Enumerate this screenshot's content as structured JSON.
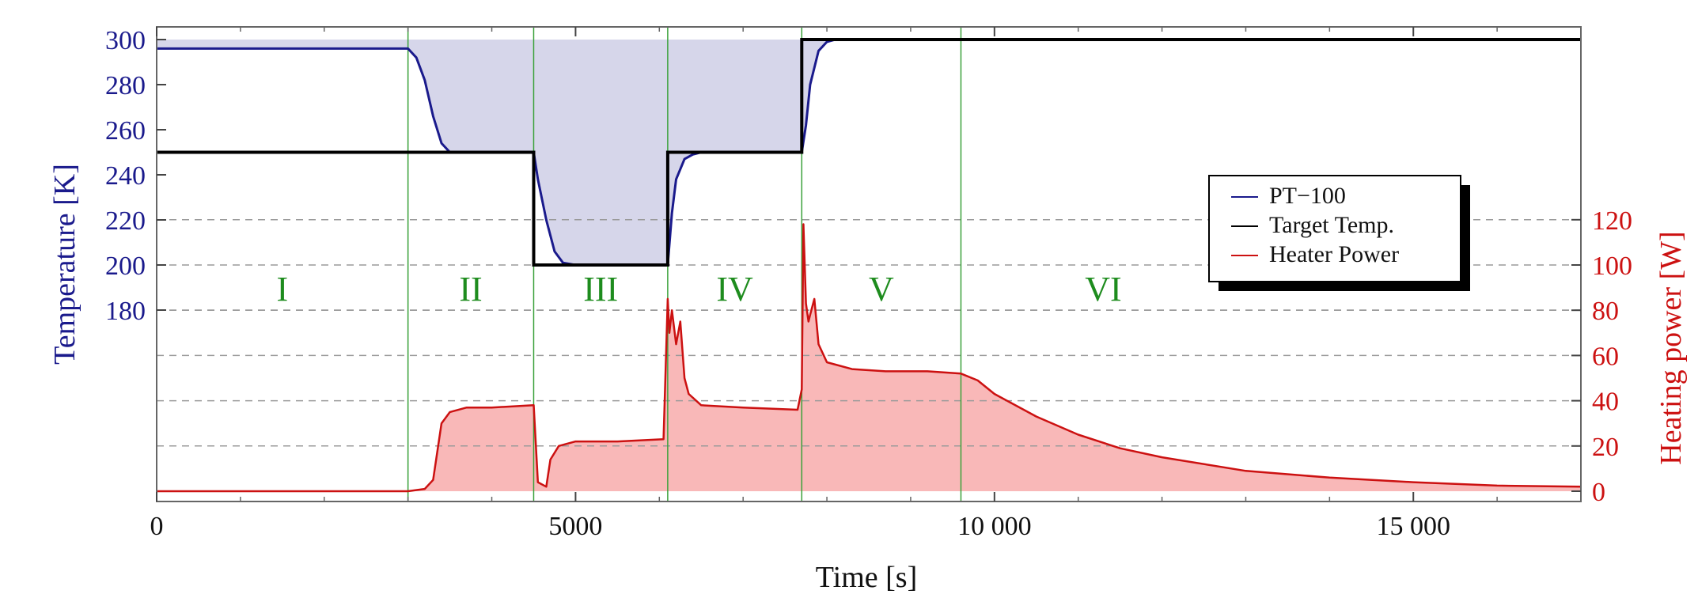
{
  "chart_data": {
    "type": "line",
    "xlabel": "Time [s]",
    "ylabel_left": "Temperature [K]",
    "ylabel_right": "Heating  power [W]",
    "xlim": [
      0,
      17000
    ],
    "ylim_left": [
      180,
      300
    ],
    "ylim_right": [
      0,
      120
    ],
    "x_ticks": [
      {
        "value": 0,
        "label": "0"
      },
      {
        "value": 5000,
        "label": "5000"
      },
      {
        "value": 10000,
        "label": "10 000"
      },
      {
        "value": 15000,
        "label": "15 000"
      }
    ],
    "y_left_ticks": [
      {
        "value": 300,
        "label": "300"
      },
      {
        "value": 280,
        "label": "280"
      },
      {
        "value": 260,
        "label": "260"
      },
      {
        "value": 240,
        "label": "240"
      },
      {
        "value": 220,
        "label": "220"
      },
      {
        "value": 200,
        "label": "200"
      },
      {
        "value": 180,
        "label": "180"
      }
    ],
    "y_right_ticks": [
      {
        "value": 0,
        "label": "0"
      },
      {
        "value": 20,
        "label": "20"
      },
      {
        "value": 40,
        "label": "40"
      },
      {
        "value": 60,
        "label": "60"
      },
      {
        "value": 80,
        "label": "80"
      },
      {
        "value": 100,
        "label": "100"
      },
      {
        "value": 120,
        "label": "120"
      }
    ],
    "phase_boundaries": [
      3000,
      4500,
      6100,
      7700,
      9600
    ],
    "phases": [
      {
        "label": "I",
        "x": 1500
      },
      {
        "label": "II",
        "x": 3750
      },
      {
        "label": "III",
        "x": 5300
      },
      {
        "label": "IV",
        "x": 6900
      },
      {
        "label": "V",
        "x": 8650
      },
      {
        "label": "VI",
        "x": 11300
      }
    ],
    "legend_position": "right",
    "series": [
      {
        "name": "PT−100",
        "axis": "left",
        "color": "#1a1a8c",
        "x": [
          0,
          3000,
          3100,
          3200,
          3300,
          3400,
          3500,
          4500,
          4550,
          4650,
          4750,
          4850,
          5000,
          6100,
          6150,
          6200,
          6300,
          6400,
          6500,
          7700,
          7750,
          7800,
          7900,
          8000,
          8100,
          17000
        ],
        "y": [
          296,
          296,
          292,
          282,
          266,
          254,
          250,
          250,
          238,
          220,
          206,
          201,
          200,
          200,
          223,
          238,
          247,
          249,
          250,
          250,
          262,
          280,
          295,
          299,
          300,
          300
        ]
      },
      {
        "name": "Target Temp.",
        "axis": "left",
        "color": "#000000",
        "x": [
          0,
          4500,
          4500,
          6100,
          6100,
          7700,
          7700,
          17000
        ],
        "y": [
          250,
          250,
          200,
          200,
          250,
          250,
          300,
          300
        ]
      },
      {
        "name": "Heater Power",
        "axis": "right",
        "color": "#cc1111",
        "x": [
          0,
          3000,
          3200,
          3300,
          3400,
          3500,
          3700,
          4000,
          4500,
          4550,
          4650,
          4700,
          4800,
          5000,
          5500,
          6050,
          6100,
          6120,
          6150,
          6200,
          6250,
          6300,
          6350,
          6500,
          7000,
          7650,
          7700,
          7720,
          7750,
          7780,
          7800,
          7850,
          7900,
          8000,
          8300,
          8700,
          9200,
          9600,
          9800,
          10000,
          10500,
          11000,
          11500,
          12000,
          13000,
          14000,
          15000,
          16000,
          17000
        ],
        "y": [
          0,
          0,
          1,
          5,
          30,
          35,
          37,
          37,
          38,
          4,
          2,
          14,
          20,
          22,
          22,
          23,
          85,
          70,
          80,
          65,
          75,
          50,
          43,
          38,
          37,
          36,
          45,
          118,
          83,
          75,
          78,
          85,
          65,
          57,
          54,
          53,
          53,
          52,
          49,
          43,
          33,
          25,
          19,
          15,
          9,
          6,
          4,
          2.5,
          2
        ]
      }
    ]
  }
}
